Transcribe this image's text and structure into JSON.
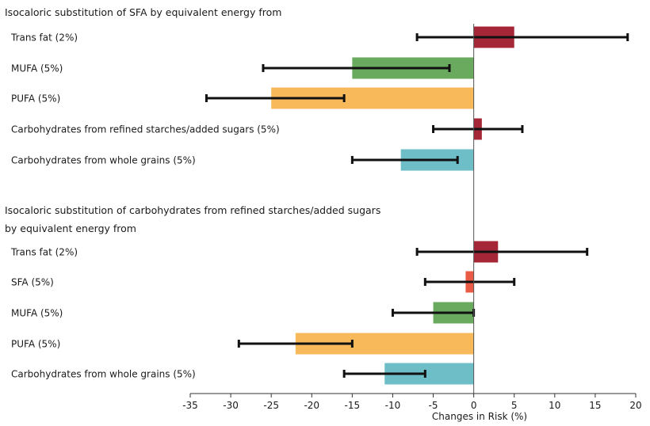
{
  "chart_data": {
    "type": "bar",
    "orientation": "horizontal",
    "xlabel": "Changes in Risk (%)",
    "xlim": [
      -35,
      20
    ],
    "xticks": [
      -35,
      -30,
      -25,
      -20,
      -15,
      -10,
      -5,
      0,
      5,
      10,
      15,
      20
    ],
    "grid": false,
    "error_bars": true,
    "panels": [
      {
        "heading_lines": [
          "Isocaloric substitution of SFA by equivalent energy from"
        ],
        "rows": [
          {
            "label": "Trans fat (2%)",
            "value": 5,
            "ci": [
              -7,
              19
            ],
            "color": "#a52737"
          },
          {
            "label": "MUFA (5%)",
            "value": -15,
            "ci": [
              -26,
              -3
            ],
            "color": "#6aaa5e"
          },
          {
            "label": "PUFA (5%)",
            "value": -25,
            "ci": [
              -33,
              -16
            ],
            "color": "#f7b95a"
          },
          {
            "label": "Carbohydrates from refined starches/added sugars (5%)",
            "value": 1,
            "ci": [
              -5,
              6
            ],
            "color": "#a52737"
          },
          {
            "label": "Carbohydrates from whole grains (5%)",
            "value": -9,
            "ci": [
              -15,
              -2
            ],
            "color": "#6dbec6"
          }
        ]
      },
      {
        "heading_lines": [
          "Isocaloric substitution of carbohydrates from refined starches/added sugars",
          "by equivalent energy from"
        ],
        "rows": [
          {
            "label": "Trans fat (2%)",
            "value": 3,
            "ci": [
              -7,
              14
            ],
            "color": "#a52737"
          },
          {
            "label": "SFA (5%)",
            "value": -1,
            "ci": [
              -6,
              5
            ],
            "color": "#ea5b45"
          },
          {
            "label": "MUFA (5%)",
            "value": -5,
            "ci": [
              -10,
              0
            ],
            "color": "#6aaa5e"
          },
          {
            "label": "PUFA (5%)",
            "value": -22,
            "ci": [
              -29,
              -15
            ],
            "color": "#f7b95a"
          },
          {
            "label": "Carbohydrates from whole grains (5%)",
            "value": -11,
            "ci": [
              -16,
              -6
            ],
            "color": "#6dbec6"
          }
        ]
      }
    ]
  }
}
